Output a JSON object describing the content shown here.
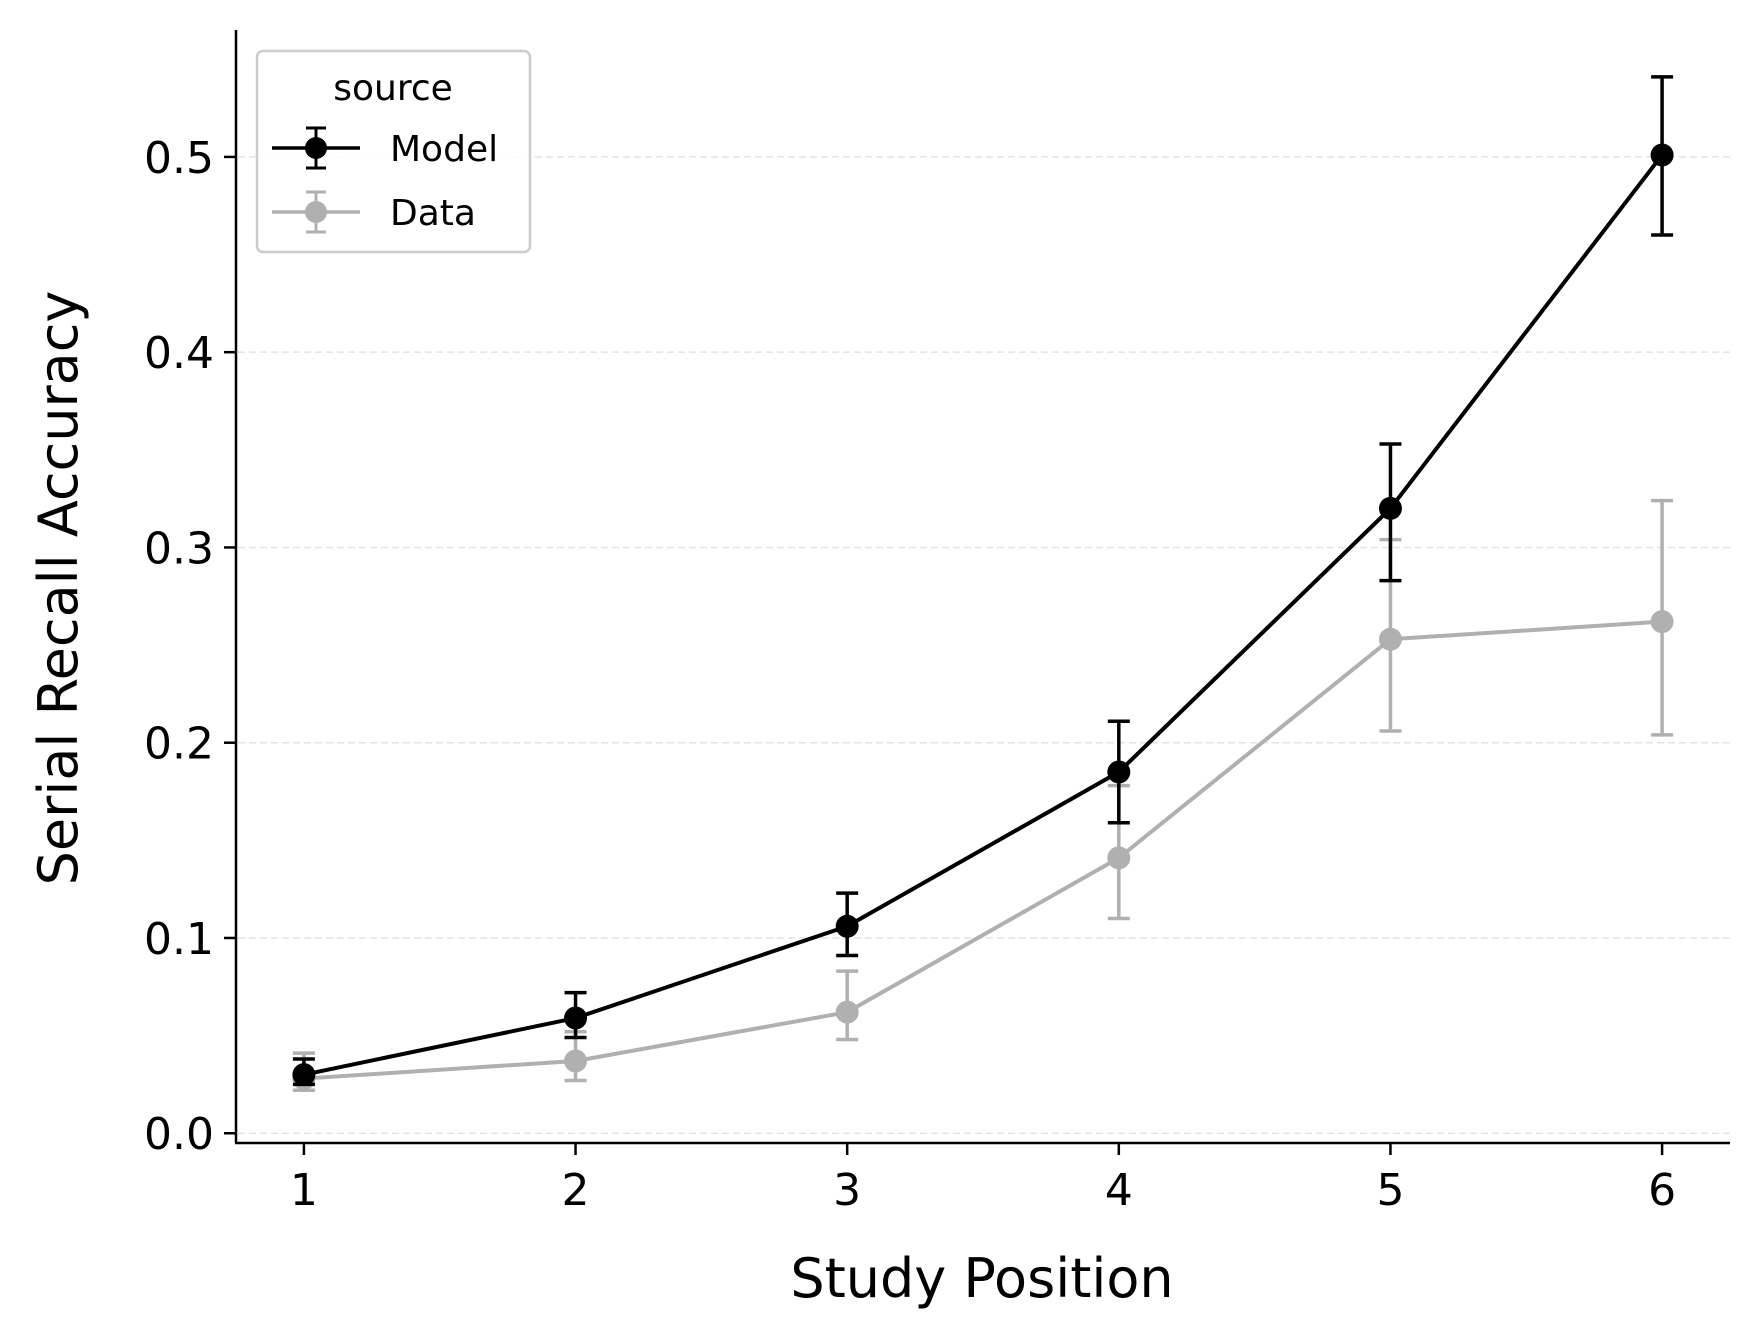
{
  "chart_data": {
    "type": "line",
    "xlabel": "Study Position",
    "ylabel": "Serial Recall Accuracy",
    "x": [
      1,
      2,
      3,
      4,
      5,
      6
    ],
    "xlim": [
      0.75,
      6.25
    ],
    "ylim": [
      -0.005,
      0.565
    ],
    "xticks": [
      "1",
      "2",
      "3",
      "4",
      "5",
      "6"
    ],
    "yticks": [
      "0.0",
      "0.1",
      "0.2",
      "0.3",
      "0.4",
      "0.5"
    ],
    "grid": "horizontal dashed",
    "legend": {
      "title": "source",
      "placement": "top-left",
      "entries": [
        "Model",
        "Data"
      ]
    },
    "series": [
      {
        "name": "Model",
        "color": "#000000",
        "values": [
          0.03,
          0.059,
          0.106,
          0.185,
          0.32,
          0.501
        ],
        "err_low": [
          0.025,
          0.049,
          0.091,
          0.159,
          0.283,
          0.46
        ],
        "err_high": [
          0.038,
          0.072,
          0.123,
          0.211,
          0.353,
          0.541
        ]
      },
      {
        "name": "Data",
        "color": "#b0b0b0",
        "values": [
          0.028,
          0.037,
          0.062,
          0.141,
          0.253,
          0.262
        ],
        "err_low": [
          0.022,
          0.027,
          0.048,
          0.11,
          0.206,
          0.204
        ],
        "err_high": [
          0.041,
          0.052,
          0.083,
          0.178,
          0.304,
          0.324
        ]
      }
    ]
  }
}
